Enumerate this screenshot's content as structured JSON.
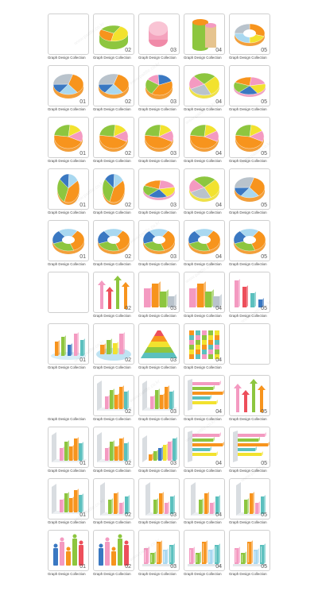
{
  "caption_text": "Graph Design Collection",
  "watermark_text": "www.pattlle.co.kr",
  "colors": {
    "orange": "#f7941d",
    "lime": "#8dc63f",
    "yellow": "#f2e22e",
    "pink": "#f49ac1",
    "teal": "#5bc0be",
    "blue": "#3a78c2",
    "gray": "#b9c3cc",
    "red": "#ed4f5b",
    "lightblue": "#a9d8f0",
    "border": "#cfcfcf"
  },
  "rows": [
    {
      "cells": [
        {
          "kind": "blank",
          "num": "",
          "caption": true
        },
        {
          "kind": "cylinder-pie",
          "num": "02",
          "caption": true
        },
        {
          "kind": "cylinder-pink",
          "num": "03",
          "caption": true
        },
        {
          "kind": "cylinder-stack",
          "num": "04",
          "caption": true
        },
        {
          "kind": "donut-flat",
          "num": "05",
          "caption": true
        }
      ]
    },
    {
      "cells": [
        {
          "kind": "pie-flat",
          "num": "01",
          "caption": true
        },
        {
          "kind": "pie-flat",
          "num": "02",
          "caption": true
        },
        {
          "kind": "pie-slice",
          "num": "03",
          "caption": true
        },
        {
          "kind": "pie-bright",
          "num": "04",
          "caption": true
        },
        {
          "kind": "pie-thin",
          "num": "05",
          "caption": true
        }
      ]
    },
    {
      "cells": [
        {
          "kind": "pie-explode",
          "num": "01",
          "caption": true
        },
        {
          "kind": "pie-explode",
          "num": "02",
          "caption": true
        },
        {
          "kind": "pie-explode",
          "num": "03",
          "caption": true
        },
        {
          "kind": "pie-explode",
          "num": "04",
          "caption": true
        },
        {
          "kind": "pie-explode",
          "num": "05",
          "caption": true
        }
      ]
    },
    {
      "cells": [
        {
          "kind": "pie-tilt",
          "num": "01",
          "caption": true
        },
        {
          "kind": "pie-tilt",
          "num": "02",
          "caption": true
        },
        {
          "kind": "pie-thin",
          "num": "03",
          "caption": true
        },
        {
          "kind": "pie-bright",
          "num": "04",
          "caption": true
        },
        {
          "kind": "pie-flat",
          "num": "05",
          "caption": true
        }
      ]
    },
    {
      "cells": [
        {
          "kind": "donut",
          "num": "01",
          "caption": true
        },
        {
          "kind": "donut",
          "num": "02",
          "caption": true
        },
        {
          "kind": "donut",
          "num": "03",
          "caption": true
        },
        {
          "kind": "donut",
          "num": "04",
          "caption": true
        },
        {
          "kind": "donut",
          "num": "05",
          "caption": true
        }
      ]
    },
    {
      "cells": [
        {
          "kind": "blank",
          "num": "",
          "caption": false
        },
        {
          "kind": "arrows-up",
          "num": "02",
          "caption": true
        },
        {
          "kind": "bars-3d",
          "num": "03",
          "caption": true
        },
        {
          "kind": "bars-3d",
          "num": "04",
          "caption": true
        },
        {
          "kind": "bars-pink",
          "num": "05",
          "caption": true
        }
      ]
    },
    {
      "cells": [
        {
          "kind": "bars-floor",
          "num": "01",
          "caption": true
        },
        {
          "kind": "bars-platform",
          "num": "02",
          "caption": true
        },
        {
          "kind": "pyramid",
          "num": "03",
          "caption": true
        },
        {
          "kind": "bars-striped",
          "num": "04",
          "caption": true
        },
        {
          "kind": "blank",
          "num": "",
          "caption": false
        }
      ]
    },
    {
      "cells": [
        {
          "kind": "none",
          "num": "",
          "caption": true
        },
        {
          "kind": "bars-wall",
          "num": "02",
          "caption": true
        },
        {
          "kind": "bars-wall",
          "num": "03",
          "caption": true
        },
        {
          "kind": "hbars",
          "num": "04",
          "caption": true
        },
        {
          "kind": "arrows-up",
          "num": "05",
          "caption": true
        }
      ]
    },
    {
      "cells": [
        {
          "kind": "bars-wall",
          "num": "01",
          "caption": true
        },
        {
          "kind": "bars-wall",
          "num": "02",
          "caption": true
        },
        {
          "kind": "bars-rising",
          "num": "03",
          "caption": true
        },
        {
          "kind": "hbars",
          "num": "04",
          "caption": true
        },
        {
          "kind": "hbars",
          "num": "05",
          "caption": true
        }
      ]
    },
    {
      "cells": [
        {
          "kind": "bars-wall",
          "num": "01",
          "caption": true
        },
        {
          "kind": "bars-side",
          "num": "02",
          "caption": true
        },
        {
          "kind": "bars-side",
          "num": "03",
          "caption": true
        },
        {
          "kind": "bars-side",
          "num": "04",
          "caption": true
        },
        {
          "kind": "bars-side",
          "num": "05",
          "caption": true
        }
      ]
    },
    {
      "cells": [
        {
          "kind": "people",
          "num": "01",
          "caption": true
        },
        {
          "kind": "people",
          "num": "02",
          "caption": true
        },
        {
          "kind": "bars-glass",
          "num": "03",
          "caption": true
        },
        {
          "kind": "bars-glass",
          "num": "04",
          "caption": true
        },
        {
          "kind": "bars-glass",
          "num": "05",
          "caption": true
        }
      ]
    }
  ]
}
